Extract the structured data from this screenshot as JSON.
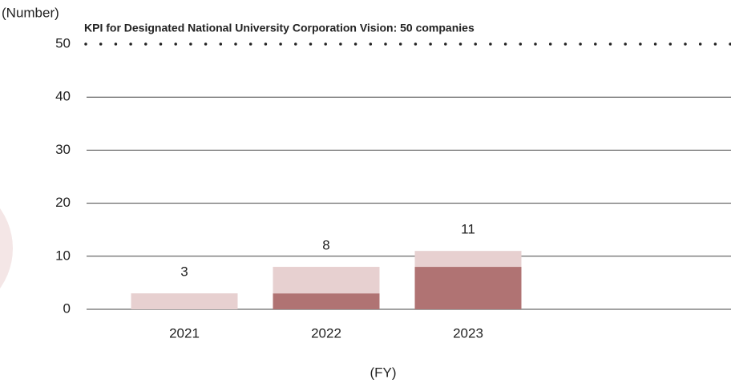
{
  "chart_data": {
    "type": "stacked_bar",
    "y_label": "(Number)",
    "x_label": "(FY)",
    "categories": [
      "2021",
      "2022",
      "2023"
    ],
    "series": [
      {
        "color": "#b07373",
        "values": [
          0,
          3,
          8
        ]
      },
      {
        "color": "#e7d0d0",
        "values": [
          3,
          5,
          3
        ]
      }
    ],
    "totals": [
      3,
      8,
      11
    ],
    "kpi": {
      "label": "KPI for Designated National University Corporation Vision: 50 companies",
      "value": 50
    },
    "ylim": [
      0,
      50
    ],
    "yticks": [
      0,
      10,
      20,
      30,
      40,
      50
    ],
    "grid": true
  }
}
